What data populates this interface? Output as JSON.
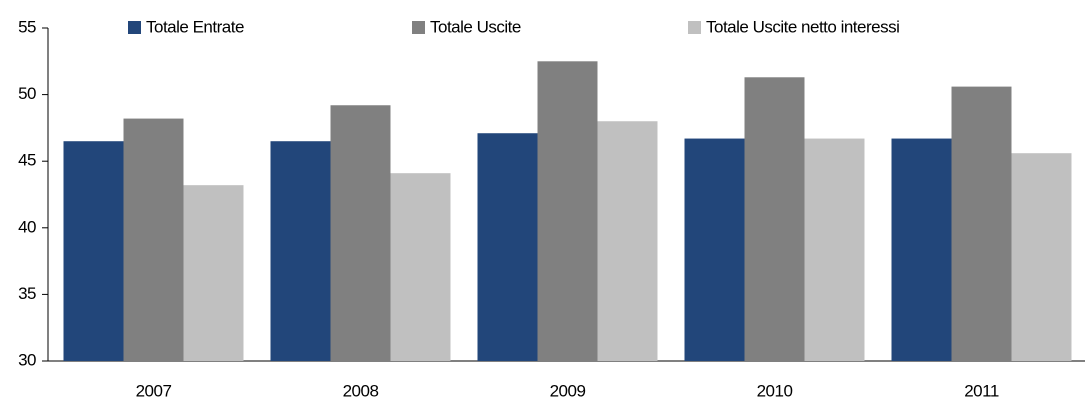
{
  "chart_data": {
    "type": "bar",
    "categories": [
      "2007",
      "2008",
      "2009",
      "2010",
      "2011"
    ],
    "series": [
      {
        "name": "Totale Entrate",
        "color": "#22467a",
        "values": [
          46.5,
          46.5,
          47.1,
          46.7,
          46.7
        ]
      },
      {
        "name": "Totale Uscite",
        "color": "#808080",
        "values": [
          48.2,
          49.2,
          52.5,
          51.3,
          50.6
        ]
      },
      {
        "name": "Totale Uscite netto interessi",
        "color": "#c0c0c0",
        "values": [
          43.2,
          44.1,
          48.0,
          46.7,
          45.6
        ]
      }
    ],
    "ylim": [
      30,
      55
    ],
    "yticks": [
      30,
      35,
      40,
      45,
      50,
      55
    ],
    "grid": false,
    "legend": "top"
  }
}
